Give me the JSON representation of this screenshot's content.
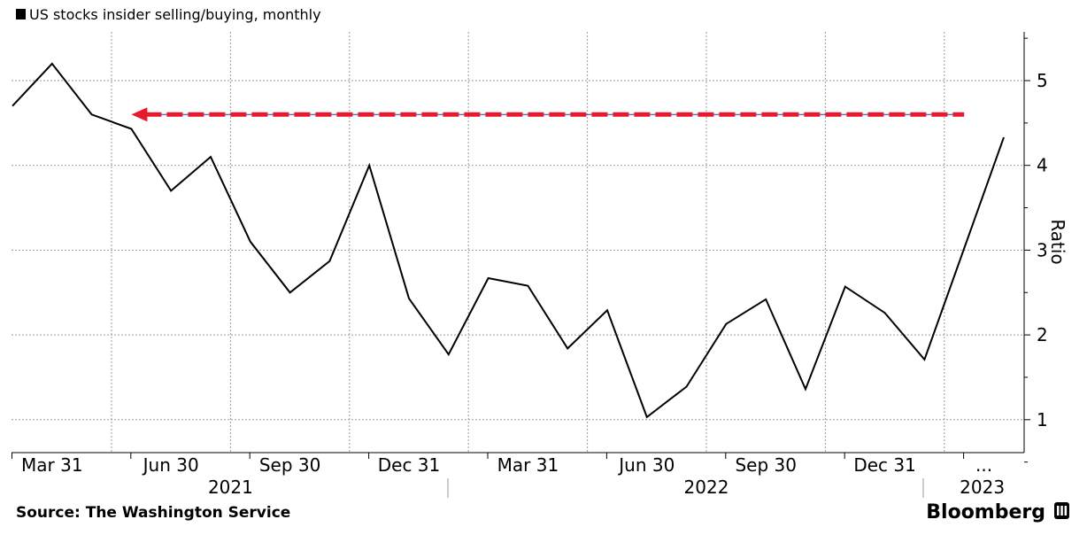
{
  "chart_data": {
    "type": "line",
    "title": "US stocks insider selling/buying, monthly",
    "ylabel": "Ratio",
    "xlabel": "",
    "ylim": [
      0.5,
      5.6
    ],
    "yticks": [
      1,
      2,
      3,
      4,
      5
    ],
    "grid": true,
    "x_ticks": [
      {
        "label": "Mar 31",
        "index": 1
      },
      {
        "label": "Jun 30",
        "index": 4
      },
      {
        "label": "Sep 30",
        "index": 7
      },
      {
        "label": "Dec 31",
        "index": 10
      },
      {
        "label": "Mar 31",
        "index": 13
      },
      {
        "label": "Jun 30",
        "index": 16
      },
      {
        "label": "Sep 30",
        "index": 19
      },
      {
        "label": "Dec 31",
        "index": 22
      },
      {
        "label": "...",
        "index": 24.5
      }
    ],
    "year_labels": [
      {
        "label": "2021",
        "index": 5.5
      },
      {
        "label": "2022",
        "index": 17.5
      },
      {
        "label": "2023",
        "index": 24.5
      }
    ],
    "series": [
      {
        "color": "#000000",
        "values": [
          4.7,
          5.2,
          4.6,
          4.43,
          3.7,
          4.1,
          3.1,
          2.5,
          2.87,
          4.0,
          2.43,
          1.77,
          2.67,
          2.58,
          1.84,
          2.29,
          1.03,
          1.39,
          2.13,
          2.42,
          1.36,
          2.57,
          2.26,
          1.71,
          3.02,
          4.33
        ]
      }
    ],
    "annotation": {
      "type": "arrow",
      "y": 4.6,
      "from_index": 24,
      "to_index": 3,
      "color": "#e8192c"
    }
  },
  "footer": {
    "source": "Source: The Washington Service",
    "brand": "Bloomberg"
  }
}
